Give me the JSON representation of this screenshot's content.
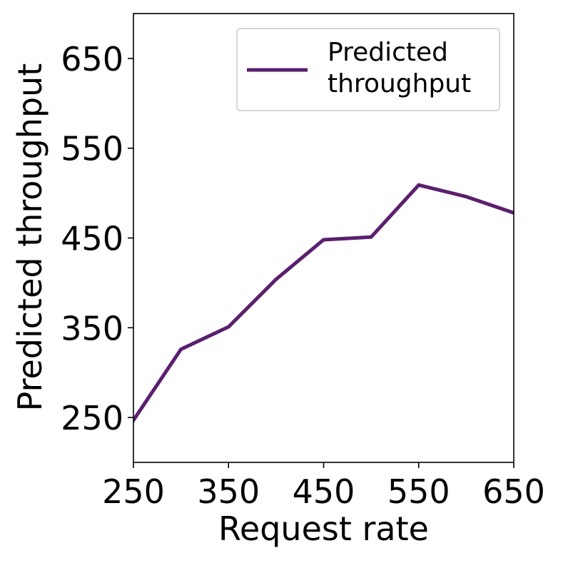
{
  "chart_data": {
    "type": "line",
    "title": "",
    "xlabel": "Request rate",
    "ylabel": "Predicted throughput",
    "xlim": [
      250,
      650
    ],
    "ylim": [
      200,
      700
    ],
    "xticks": [
      250,
      350,
      450,
      550,
      650
    ],
    "yticks": [
      250,
      350,
      450,
      550,
      650
    ],
    "xtick_labels": [
      "250",
      "350",
      "450",
      "550",
      "650"
    ],
    "ytick_labels": [
      "250",
      "350",
      "450",
      "550",
      "650"
    ],
    "grid": false,
    "legend": {
      "placement": "top-right",
      "entries": [
        "Predicted\nthroughput"
      ]
    },
    "series": [
      {
        "name": "Predicted\nthroughput",
        "color": "#5a1f6e",
        "x": [
          250,
          300,
          350,
          400,
          450,
          500,
          550,
          600,
          650
        ],
        "y": [
          247,
          326,
          351,
          404,
          448,
          451,
          509,
          496,
          478
        ]
      }
    ]
  }
}
